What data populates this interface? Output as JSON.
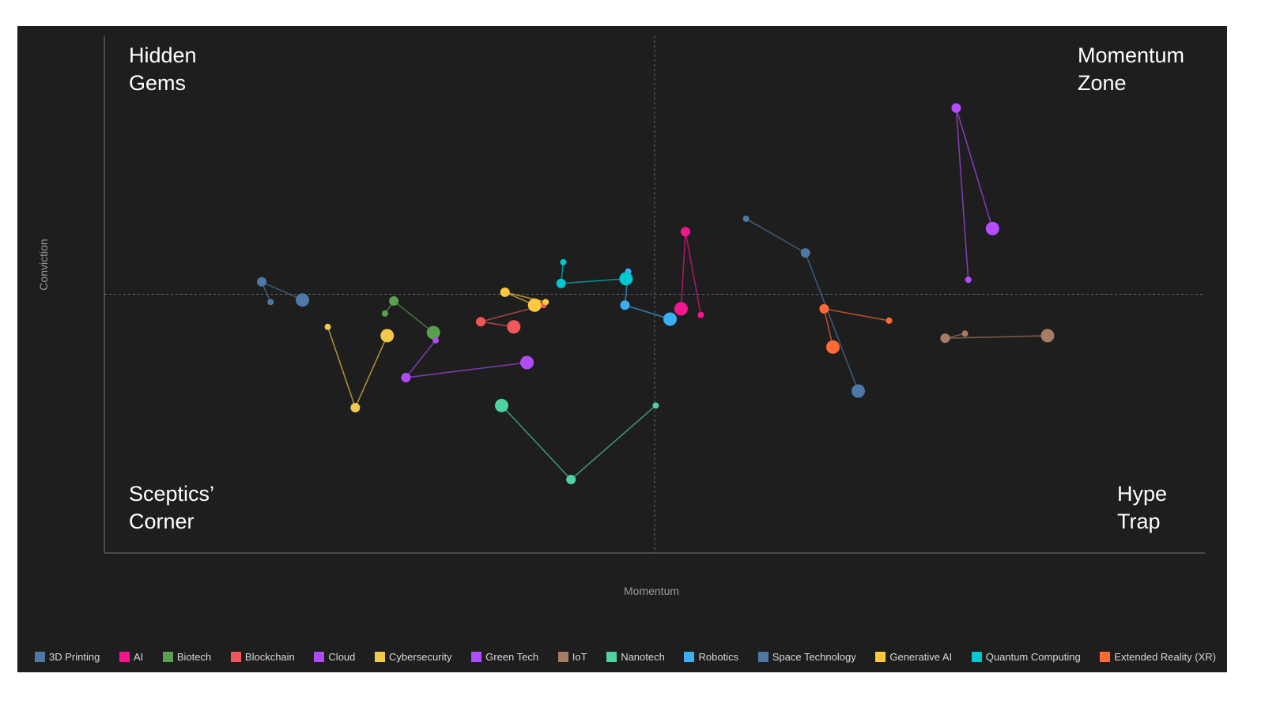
{
  "chart_data": {
    "type": "scatter",
    "subtype": "connected trajectories",
    "xlabel": "Momentum",
    "ylabel": "Conviction",
    "xlim": [
      0,
      100
    ],
    "ylim": [
      0,
      100
    ],
    "midlines": {
      "x": 50,
      "y": 50
    },
    "quadrants": {
      "top_left": "Hidden\nGems",
      "top_right": "Momentum\nZone",
      "bottom_left": "Sceptics’\nCorner",
      "bottom_right": "Hype\nTrap"
    },
    "legend_placement": "bottom",
    "series": [
      {
        "name": "3D Printing",
        "color": "#4e79a7",
        "points": [
          [
            15.1,
            48.5
          ],
          [
            14.3,
            52.4
          ],
          [
            18.0,
            48.9
          ]
        ]
      },
      {
        "name": "AI",
        "color": "#f5158f",
        "points": [
          [
            54.2,
            46.0
          ],
          [
            52.8,
            62.1
          ],
          [
            52.4,
            47.2
          ]
        ]
      },
      {
        "name": "Biotech",
        "color": "#59a14f",
        "points": [
          [
            25.5,
            46.3
          ],
          [
            26.3,
            48.7
          ],
          [
            29.9,
            42.6
          ]
        ]
      },
      {
        "name": "Blockchain",
        "color": "#f0575a",
        "points": [
          [
            39.9,
            47.9
          ],
          [
            34.2,
            44.7
          ],
          [
            37.2,
            43.7
          ]
        ]
      },
      {
        "name": "Cloud",
        "color": "#b04cf5",
        "points": [
          [
            30.1,
            41.1
          ],
          [
            27.4,
            33.9
          ],
          [
            38.4,
            36.8
          ]
        ]
      },
      {
        "name": "Cybersecurity",
        "color": "#f2c94c",
        "points": [
          [
            20.3,
            43.7
          ],
          [
            22.8,
            28.1
          ],
          [
            25.7,
            42.0
          ]
        ]
      },
      {
        "name": "Green Tech",
        "color": "#b44cff",
        "points": [
          [
            78.5,
            52.8
          ],
          [
            77.4,
            86.0
          ],
          [
            80.7,
            62.7
          ]
        ]
      },
      {
        "name": "IoT",
        "color": "#a67c65",
        "points": [
          [
            78.2,
            42.4
          ],
          [
            76.4,
            41.5
          ],
          [
            85.7,
            42.0
          ]
        ]
      },
      {
        "name": "Nanotech",
        "color": "#4fd1a0",
        "points": [
          [
            50.1,
            28.5
          ],
          [
            42.4,
            14.2
          ],
          [
            36.1,
            28.5
          ]
        ]
      },
      {
        "name": "Robotics",
        "color": "#3aaff5",
        "points": [
          [
            47.6,
            54.4
          ],
          [
            47.3,
            47.9
          ],
          [
            51.4,
            45.2
          ]
        ]
      },
      {
        "name": "Space Technology",
        "color": "#4e79a7",
        "points": [
          [
            58.3,
            64.6
          ],
          [
            63.7,
            58.0
          ],
          [
            68.5,
            31.3
          ]
        ]
      },
      {
        "name": "Generative AI",
        "color": "#ffc83d",
        "points": [
          [
            40.1,
            48.5
          ],
          [
            36.4,
            50.4
          ],
          [
            39.1,
            47.9
          ]
        ]
      },
      {
        "name": "Quantum Computing",
        "color": "#00c8d2",
        "points": [
          [
            41.7,
            56.2
          ],
          [
            41.5,
            52.1
          ],
          [
            47.4,
            53.0
          ]
        ]
      },
      {
        "name": "Extended Reality (XR)",
        "color": "#ff6b35",
        "points": [
          [
            71.3,
            44.9
          ],
          [
            65.4,
            47.2
          ],
          [
            66.2,
            39.8
          ]
        ]
      }
    ]
  }
}
